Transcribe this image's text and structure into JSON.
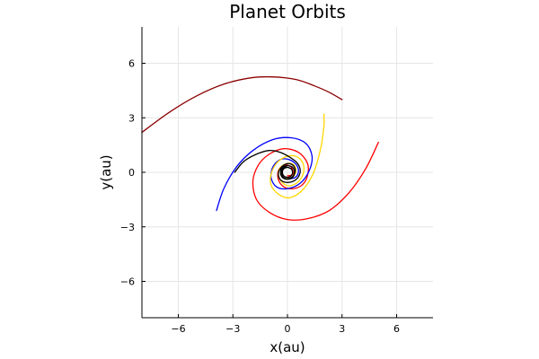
{
  "chart_data": {
    "type": "line",
    "title": "Planet Orbits",
    "xlabel": "x(au)",
    "ylabel": "y(au)",
    "xlim": [
      -8,
      8
    ],
    "ylim": [
      -8,
      8
    ],
    "xticks": [
      -6,
      -3,
      0,
      3,
      6
    ],
    "yticks": [
      -6,
      -3,
      0,
      3,
      6
    ],
    "xtick_labels": [
      "−6",
      "−3",
      "0",
      "3",
      "6"
    ],
    "ytick_labels": [
      "−6",
      "−3",
      "0",
      "3",
      "6"
    ],
    "grid": true,
    "legend": "none",
    "aspect": "equal",
    "series": [
      {
        "color": "#8b0000",
        "x": [
          -8.0,
          -6.5,
          -5.0,
          -3.5,
          -2.0,
          -0.8,
          0.5,
          1.5,
          2.3,
          3.0
        ],
        "y": [
          2.2,
          3.3,
          4.2,
          4.85,
          5.2,
          5.25,
          5.1,
          4.75,
          4.4,
          4.0
        ]
      },
      {
        "color": "#ff0000",
        "x": [
          5.0,
          4.3,
          3.4,
          2.3,
          1.1,
          0.0,
          -1.0,
          -1.7,
          -1.9,
          -1.6,
          -1.0,
          -0.2,
          0.6,
          1.1,
          1.1,
          0.8,
          0.3,
          -0.2,
          -0.5,
          -0.5,
          -0.2,
          0.2,
          0.3,
          0.0
        ],
        "y": [
          1.65,
          0.2,
          -1.1,
          -2.1,
          -2.55,
          -2.6,
          -2.2,
          -1.5,
          -0.5,
          0.4,
          1.0,
          1.3,
          1.1,
          0.5,
          -0.2,
          -0.7,
          -0.9,
          -0.8,
          -0.4,
          0.1,
          0.4,
          0.3,
          -0.1,
          -0.2
        ]
      },
      {
        "color": "#0000ff",
        "x": [
          -3.9,
          -3.5,
          -2.8,
          -1.9,
          -0.8,
          0.2,
          1.0,
          1.35,
          1.2,
          0.7,
          0.0,
          -0.6,
          -0.9,
          -0.8,
          -0.4,
          0.1,
          0.5,
          0.6,
          0.4,
          0.0
        ],
        "y": [
          -2.1,
          -0.9,
          0.3,
          1.2,
          1.8,
          1.9,
          1.6,
          0.9,
          0.1,
          -0.6,
          -0.9,
          -0.8,
          -0.3,
          0.3,
          0.7,
          0.7,
          0.4,
          0.0,
          -0.3,
          -0.35
        ]
      },
      {
        "color": "#ffd700",
        "x": [
          2.0,
          2.0,
          1.8,
          1.4,
          0.8,
          0.1,
          -0.5,
          -0.9,
          -0.9,
          -0.6,
          -0.1,
          0.4,
          0.8,
          0.9,
          0.7,
          0.3,
          -0.1,
          -0.4,
          -0.5,
          -0.3,
          0.1,
          0.4,
          0.45,
          0.25,
          -0.1
        ],
        "y": [
          3.2,
          2.5,
          1.2,
          -0.1,
          -1.0,
          -1.4,
          -1.2,
          -0.7,
          -0.1,
          0.5,
          0.85,
          0.9,
          0.6,
          0.1,
          -0.4,
          -0.7,
          -0.7,
          -0.4,
          0.0,
          0.35,
          0.5,
          0.35,
          0.0,
          -0.3,
          -0.35
        ]
      },
      {
        "color": "#000000",
        "x": [
          -2.9,
          -2.4,
          -1.7,
          -1.0,
          -0.4,
          0.1,
          0.5,
          0.7,
          0.6,
          0.3,
          -0.1,
          -0.4,
          -0.5,
          -0.4,
          -0.1,
          0.2,
          0.4,
          0.4,
          0.2,
          -0.1,
          -0.3,
          -0.3,
          -0.1,
          0.2
        ],
        "y": [
          0.0,
          0.6,
          1.0,
          1.2,
          1.1,
          0.85,
          0.55,
          0.15,
          -0.25,
          -0.5,
          -0.55,
          -0.4,
          -0.1,
          0.2,
          0.45,
          0.45,
          0.25,
          -0.05,
          -0.3,
          -0.35,
          -0.15,
          0.15,
          0.3,
          0.2
        ]
      },
      {
        "color": "#000000",
        "x": [
          0.0,
          0.28,
          0.38,
          0.28,
          0.0,
          -0.28,
          -0.38,
          -0.28,
          0.0
        ],
        "y": [
          0.38,
          0.28,
          0.0,
          -0.28,
          -0.38,
          -0.28,
          0.0,
          0.28,
          0.38
        ]
      },
      {
        "color": "#000000",
        "x": [
          0.0,
          0.2,
          0.28,
          0.2,
          0.0,
          -0.2,
          -0.28,
          -0.2,
          0.0
        ],
        "y": [
          0.28,
          0.2,
          0.0,
          -0.2,
          -0.28,
          -0.2,
          0.0,
          0.2,
          0.28
        ]
      }
    ]
  }
}
